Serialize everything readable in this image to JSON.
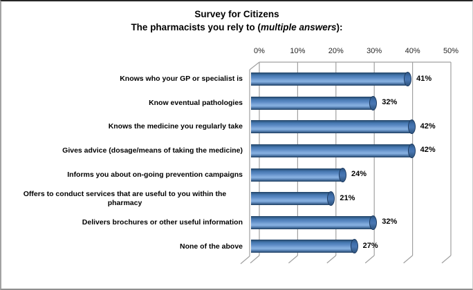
{
  "chart_data": {
    "type": "bar",
    "orientation": "horizontal",
    "style": "3d-cylinder",
    "title_line1": "Survey for Citizens",
    "title_line2": {
      "prefix": "The pharmacists you rely to (",
      "italic": "multiple answers",
      "suffix": "):"
    },
    "categories": [
      "Knows who your GP or specialist is",
      "Know eventual pathologies",
      "Knows the medicine you regularly take",
      "Gives advice (dosage/means of taking the medicine)",
      "Informs you about on-going prevention campaigns",
      "Offers to conduct services that are useful to you within the pharmacy",
      "Delivers brochures or other useful information",
      "None of the above"
    ],
    "values": [
      41,
      32,
      42,
      42,
      24,
      21,
      32,
      27
    ],
    "value_labels": [
      "41%",
      "32%",
      "42%",
      "42%",
      "24%",
      "21%",
      "32%",
      "27%"
    ],
    "xlim": [
      0,
      50
    ],
    "xtick_values": [
      0,
      10,
      20,
      30,
      40,
      50
    ],
    "xtick_labels": [
      "0%",
      "10%",
      "20%",
      "30%",
      "40%",
      "50%"
    ],
    "grid": true,
    "legend": false,
    "bar_color": "#4f81bd",
    "bar_cap_color": "#3f6fac",
    "gridline_color": "#a0a0a0",
    "text_color": "#000000"
  }
}
